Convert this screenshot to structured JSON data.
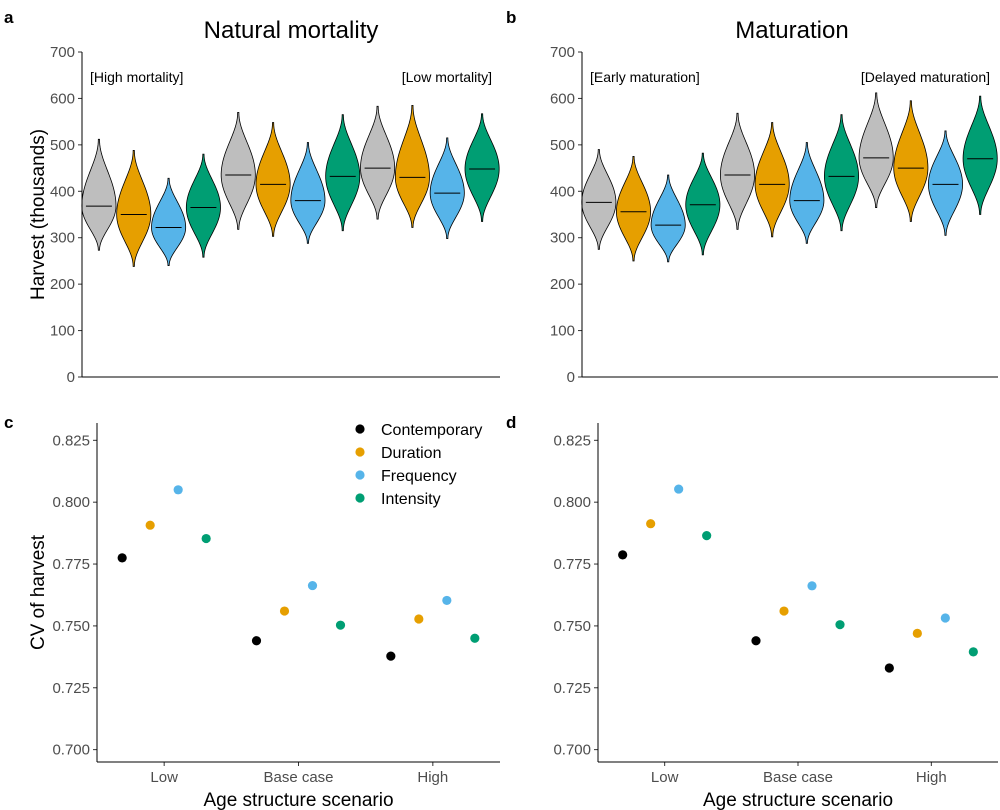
{
  "colors": {
    "Contemporary": "#000000",
    "Duration": "#E69F00",
    "Frequency": "#56B4E9",
    "Intensity": "#009E73",
    "Violin_Contemporary": "#BEBEBE"
  },
  "chart_data": [
    {
      "type": "violin",
      "panel": "a",
      "title": "Natural mortality",
      "ylabel": "Harvest (thousands)",
      "xlabel": "",
      "ylim": [
        0,
        700
      ],
      "yticks": [
        0,
        100,
        200,
        300,
        400,
        500,
        600,
        700
      ],
      "annotations": [
        "[High mortality]",
        "[Low mortality]"
      ],
      "series_order": [
        "Contemporary",
        "Duration",
        "Frequency",
        "Intensity"
      ],
      "groups": [
        {
          "violins": [
            {
              "series": "Contemporary",
              "median": 368,
              "min": 273,
              "max": 512
            },
            {
              "series": "Duration",
              "median": 350,
              "min": 238,
              "max": 488
            },
            {
              "series": "Frequency",
              "median": 322,
              "min": 240,
              "max": 428
            },
            {
              "series": "Intensity",
              "median": 365,
              "min": 258,
              "max": 480
            }
          ]
        },
        {
          "violins": [
            {
              "series": "Contemporary",
              "median": 435,
              "min": 318,
              "max": 570
            },
            {
              "series": "Duration",
              "median": 415,
              "min": 303,
              "max": 548
            },
            {
              "series": "Frequency",
              "median": 380,
              "min": 288,
              "max": 505
            },
            {
              "series": "Intensity",
              "median": 432,
              "min": 315,
              "max": 565
            }
          ]
        },
        {
          "violins": [
            {
              "series": "Contemporary",
              "median": 450,
              "min": 340,
              "max": 583
            },
            {
              "series": "Duration",
              "median": 430,
              "min": 322,
              "max": 585
            },
            {
              "series": "Frequency",
              "median": 396,
              "min": 298,
              "max": 515
            },
            {
              "series": "Intensity",
              "median": 448,
              "min": 335,
              "max": 567
            }
          ]
        }
      ]
    },
    {
      "type": "violin",
      "panel": "b",
      "title": "Maturation",
      "ylabel": "",
      "xlabel": "",
      "ylim": [
        0,
        700
      ],
      "yticks": [
        0,
        100,
        200,
        300,
        400,
        500,
        600,
        700
      ],
      "annotations": [
        "[Early maturation]",
        "[Delayed maturation]"
      ],
      "series_order": [
        "Contemporary",
        "Duration",
        "Frequency",
        "Intensity"
      ],
      "groups": [
        {
          "violins": [
            {
              "series": "Contemporary",
              "median": 376,
              "min": 275,
              "max": 490
            },
            {
              "series": "Duration",
              "median": 356,
              "min": 250,
              "max": 475
            },
            {
              "series": "Frequency",
              "median": 327,
              "min": 248,
              "max": 435
            },
            {
              "series": "Intensity",
              "median": 371,
              "min": 263,
              "max": 482
            }
          ]
        },
        {
          "violins": [
            {
              "series": "Contemporary",
              "median": 435,
              "min": 318,
              "max": 568
            },
            {
              "series": "Duration",
              "median": 415,
              "min": 302,
              "max": 548
            },
            {
              "series": "Frequency",
              "median": 380,
              "min": 288,
              "max": 505
            },
            {
              "series": "Intensity",
              "median": 432,
              "min": 315,
              "max": 565
            }
          ]
        },
        {
          "violins": [
            {
              "series": "Contemporary",
              "median": 472,
              "min": 365,
              "max": 612
            },
            {
              "series": "Duration",
              "median": 450,
              "min": 335,
              "max": 595
            },
            {
              "series": "Frequency",
              "median": 415,
              "min": 305,
              "max": 530
            },
            {
              "series": "Intensity",
              "median": 470,
              "min": 350,
              "max": 605
            }
          ]
        }
      ]
    },
    {
      "type": "scatter",
      "panel": "c",
      "title": "",
      "xlabel": "Age structure scenario",
      "ylabel": "CV of harvest",
      "categories": [
        "Low",
        "Base case",
        "High"
      ],
      "ylim": [
        0.695,
        0.832
      ],
      "yticks": [
        0.7,
        0.725,
        0.75,
        0.775,
        0.8,
        0.825
      ],
      "yticklabels": [
        "0.700",
        "0.725",
        "0.750",
        "0.775",
        "0.800",
        "0.825"
      ],
      "legend": "top-right",
      "series": [
        {
          "name": "Contemporary",
          "values": [
            0.7775,
            0.744,
            0.7378
          ]
        },
        {
          "name": "Duration",
          "values": [
            0.7907,
            0.756,
            0.7528
          ]
        },
        {
          "name": "Frequency",
          "values": [
            0.805,
            0.7663,
            0.7603
          ]
        },
        {
          "name": "Intensity",
          "values": [
            0.7853,
            0.7503,
            0.745
          ]
        }
      ]
    },
    {
      "type": "scatter",
      "panel": "d",
      "title": "",
      "xlabel": "Age structure scenario",
      "ylabel": "",
      "categories": [
        "Low",
        "Base case",
        "High"
      ],
      "ylim": [
        0.695,
        0.832
      ],
      "yticks": [
        0.7,
        0.725,
        0.75,
        0.775,
        0.8,
        0.825
      ],
      "yticklabels": [
        "0.700",
        "0.725",
        "0.750",
        "0.775",
        "0.800",
        "0.825"
      ],
      "series": [
        {
          "name": "Contemporary",
          "values": [
            0.7787,
            0.744,
            0.733
          ]
        },
        {
          "name": "Duration",
          "values": [
            0.7913,
            0.756,
            0.747
          ]
        },
        {
          "name": "Frequency",
          "values": [
            0.8053,
            0.7662,
            0.7532
          ]
        },
        {
          "name": "Intensity",
          "values": [
            0.7865,
            0.7505,
            0.7395
          ]
        }
      ]
    }
  ],
  "labels": {
    "panel_a": "a",
    "panel_b": "b",
    "panel_c": "c",
    "panel_d": "d"
  }
}
